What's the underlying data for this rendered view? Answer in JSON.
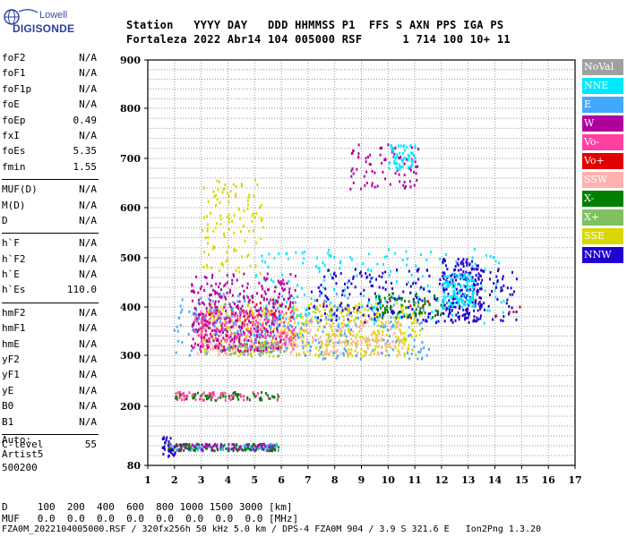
{
  "logo": {
    "line1": "Lowell",
    "line2": "DIGISONDE"
  },
  "header": {
    "row1": "Station   YYYY DAY   DDD HHMMSS P1  FFS S AXN PPS IGA PS",
    "row2": "Fortaleza 2022 Abr14 104 005000 RSF      1 714 100 10+ 11"
  },
  "params": [
    {
      "label": "foF2",
      "value": "N/A"
    },
    {
      "label": "foF1",
      "value": "N/A"
    },
    {
      "label": "foF1p",
      "value": "N/A"
    },
    {
      "label": "foE",
      "value": "N/A"
    },
    {
      "label": "foEp",
      "value": "0.49"
    },
    {
      "label": "fxI",
      "value": "N/A"
    },
    {
      "label": "foEs",
      "value": "5.35"
    },
    {
      "label": "fmin",
      "value": "1.55"
    },
    {
      "sep": true
    },
    {
      "label": "MUF(D)",
      "value": "N/A"
    },
    {
      "label": "M(D)",
      "value": "N/A"
    },
    {
      "label": "D",
      "value": "N/A"
    },
    {
      "sep": true
    },
    {
      "label": "h`F",
      "value": "N/A"
    },
    {
      "label": "h`F2",
      "value": "N/A"
    },
    {
      "label": "h`E",
      "value": "N/A"
    },
    {
      "label": "h`Es",
      "value": "110.0"
    },
    {
      "sep": true
    },
    {
      "label": "hmF2",
      "value": "N/A"
    },
    {
      "label": "hmF1",
      "value": "N/A"
    },
    {
      "label": "hmE",
      "value": "N/A"
    },
    {
      "label": "yF2",
      "value": "N/A"
    },
    {
      "label": "yF1",
      "value": "N/A"
    },
    {
      "label": "yE",
      "value": "N/A"
    },
    {
      "label": "B0",
      "value": "N/A"
    },
    {
      "label": "B1",
      "value": "N/A"
    },
    {
      "sep": true
    },
    {
      "label": "C-level",
      "value": "55"
    }
  ],
  "autoscale": {
    "line1": "Auto:",
    "line2": "Artist5",
    "line3": "500200"
  },
  "legend": [
    {
      "label": "NoVal",
      "color": "#a0a0a0"
    },
    {
      "label": "NNE",
      "color": "#00e8ff"
    },
    {
      "label": "E",
      "color": "#40a8ff"
    },
    {
      "label": "W",
      "color": "#b000a0"
    },
    {
      "label": "Vo-",
      "color": "#ff40a0"
    },
    {
      "label": "Vo+",
      "color": "#e00000"
    },
    {
      "label": "SSW",
      "color": "#ffb0b0"
    },
    {
      "label": "X-",
      "color": "#008000"
    },
    {
      "label": "X+",
      "color": "#80c060"
    },
    {
      "label": "SSE",
      "color": "#d8d800"
    },
    {
      "label": "NNW",
      "color": "#2000d0"
    }
  ],
  "scale_rows": {
    "d_row": "D     100  200  400  600  800 1000 1500 3000 [km]",
    "muf_row": "MUF   0.0  0.0  0.0  0.0  0.0  0.0  0.0  0.0 [MHz]"
  },
  "footer": "FZA0M_2022104005000.RSF / 320fx256h 50 kHz 5.0 km / DPS-4 FZA0M 904 / 3.9 S 321.6 E   Ion2Png 1.3.20",
  "chart_data": {
    "type": "scatter",
    "xlim": [
      1,
      17
    ],
    "ylim": [
      80,
      900
    ],
    "x_ticks": [
      "1",
      "2",
      "3",
      "4",
      "5",
      "6",
      "7",
      "8",
      "9",
      "10",
      "11",
      "12",
      "13",
      "14",
      "15",
      "16",
      "17"
    ],
    "y_ticks": [
      "80",
      "200",
      "300",
      "400",
      "500",
      "600",
      "700",
      "800",
      "900"
    ],
    "grid": true,
    "legend_position": "right",
    "clusters": [
      {
        "color": "SSE",
        "x": [
          3.0,
          11.2
        ],
        "y": [
          300,
          410
        ],
        "n": 520
      },
      {
        "color": "SSW",
        "x": [
          2.8,
          10.5
        ],
        "y": [
          305,
          380
        ],
        "n": 260
      },
      {
        "color": "W",
        "x": [
          2.6,
          6.0
        ],
        "y": [
          310,
          400
        ],
        "n": 260
      },
      {
        "color": "Vo-",
        "x": [
          2.7,
          6.5
        ],
        "y": [
          315,
          395
        ],
        "n": 200
      },
      {
        "color": "E",
        "x": [
          1.9,
          11.5
        ],
        "y": [
          295,
          430
        ],
        "n": 240
      },
      {
        "color": "NNE",
        "x": [
          5.0,
          14.5
        ],
        "y": [
          360,
          520
        ],
        "n": 180
      },
      {
        "color": "NNW",
        "x": [
          7.0,
          14.8
        ],
        "y": [
          370,
          480
        ],
        "n": 230
      },
      {
        "color": "X-",
        "x": [
          9.5,
          12.0
        ],
        "y": [
          380,
          430
        ],
        "n": 70
      },
      {
        "color": "X+",
        "x": [
          4.0,
          6.0
        ],
        "y": [
          300,
          330
        ],
        "n": 50
      },
      {
        "color": "Vo+",
        "x": [
          3.0,
          15.0
        ],
        "y": [
          380,
          420
        ],
        "n": 30
      },
      {
        "color": "W",
        "x": [
          2.6,
          6.5
        ],
        "y": [
          400,
          470
        ],
        "n": 140
      },
      {
        "color": "SSE",
        "x": [
          3.0,
          5.3
        ],
        "y": [
          470,
          660
        ],
        "n": 110
      },
      {
        "color": "W",
        "x": [
          8.5,
          11.2
        ],
        "y": [
          640,
          730
        ],
        "n": 80
      },
      {
        "color": "NNE",
        "x": [
          10.0,
          11.0
        ],
        "y": [
          680,
          730
        ],
        "n": 60
      },
      {
        "color": "NNW",
        "x": [
          12.0,
          13.5
        ],
        "y": [
          370,
          500
        ],
        "n": 180
      },
      {
        "color": "NNE",
        "x": [
          12.0,
          13.2
        ],
        "y": [
          400,
          470
        ],
        "n": 120
      },
      {
        "color": "Vo-",
        "x": [
          2.0,
          5.9
        ],
        "y": [
          214,
          230
        ],
        "n": 70
      },
      {
        "color": "X-",
        "x": [
          2.0,
          5.9
        ],
        "y": [
          214,
          230
        ],
        "n": 50
      },
      {
        "color": "E",
        "x": [
          1.7,
          5.9
        ],
        "y": [
          112,
          126
        ],
        "n": 120
      },
      {
        "color": "X-",
        "x": [
          1.7,
          5.9
        ],
        "y": [
          112,
          126
        ],
        "n": 80
      },
      {
        "color": "W",
        "x": [
          1.7,
          5.9
        ],
        "y": [
          112,
          126
        ],
        "n": 60
      },
      {
        "color": "NNW",
        "x": [
          1.5,
          2.0
        ],
        "y": [
          100,
          140
        ],
        "n": 30
      }
    ]
  }
}
